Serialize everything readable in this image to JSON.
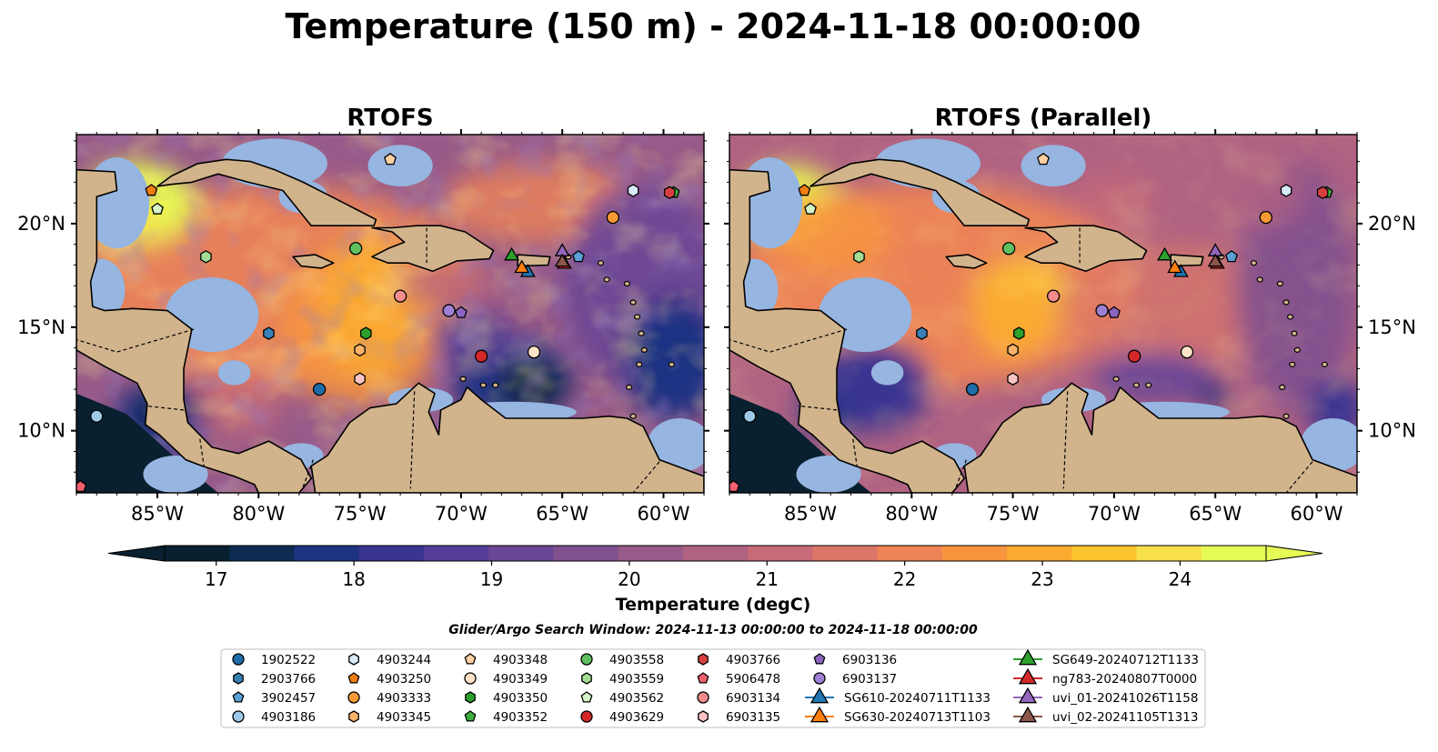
{
  "figure": {
    "title": "Temperature (150 m) - 2024-11-18 00:00:00",
    "panels": [
      {
        "title": "RTOFS",
        "variant": "rtofs"
      },
      {
        "title": "RTOFS (Parallel)",
        "variant": "parallel"
      }
    ],
    "lon_ticks": [
      "85°W",
      "80°W",
      "75°W",
      "70°W",
      "65°W",
      "60°W"
    ],
    "lat_ticks": [
      "20°N",
      "15°N",
      "10°N"
    ],
    "colorbar": {
      "label": "Temperature (degC)",
      "min": 16.625,
      "max": 24.625,
      "ticks": [
        "17",
        "18",
        "19",
        "20",
        "21",
        "22",
        "23",
        "24"
      ],
      "colors": [
        "#08202f",
        "#0e2c52",
        "#1e3282",
        "#3a3592",
        "#553e98",
        "#6a4796",
        "#80508f",
        "#985a88",
        "#b06282",
        "#c86b77",
        "#db7668",
        "#ee8455",
        "#f7953f",
        "#fbaa30",
        "#fcc42c",
        "#f8e04a",
        "#e6fa55"
      ]
    },
    "search_window": "Glider/Argo Search Window: 2024-11-13 00:00:00 to 2024-11-18 00:00:00",
    "map_colors": {
      "land": "#d2b48c",
      "shelf": "#96b5e0",
      "deep": "#08202f",
      "border": "#000000"
    },
    "legend": [
      {
        "label": "1902522",
        "marker": "circle",
        "color": "#1f6da8"
      },
      {
        "label": "2903766",
        "marker": "hexagon",
        "color": "#3980b6"
      },
      {
        "label": "3902457",
        "marker": "pentagon",
        "color": "#5b9fd4"
      },
      {
        "label": "4903186",
        "marker": "circle",
        "color": "#9ecae9"
      },
      {
        "label": "4903244",
        "marker": "hexagon",
        "color": "#d8eaf8"
      },
      {
        "label": "4903250",
        "marker": "pentagon",
        "color": "#f07d10"
      },
      {
        "label": "4903333",
        "marker": "circle",
        "color": "#f79a36"
      },
      {
        "label": "4903345",
        "marker": "hexagon",
        "color": "#fbb36b"
      },
      {
        "label": "4903348",
        "marker": "pentagon",
        "color": "#fdd0a2"
      },
      {
        "label": "4903349",
        "marker": "circle",
        "color": "#fde4c8"
      },
      {
        "label": "4903350",
        "marker": "hexagon",
        "color": "#2ca02c"
      },
      {
        "label": "4903352",
        "marker": "pentagon",
        "color": "#3dae3d"
      },
      {
        "label": "4903558",
        "marker": "circle",
        "color": "#60c060"
      },
      {
        "label": "4903559",
        "marker": "hexagon",
        "color": "#a3dc94"
      },
      {
        "label": "4903562",
        "marker": "pentagon",
        "color": "#d4f4c8"
      },
      {
        "label": "4903629",
        "marker": "circle",
        "color": "#d62728"
      },
      {
        "label": "4903766",
        "marker": "hexagon",
        "color": "#d84040"
      },
      {
        "label": "5906478",
        "marker": "pentagon",
        "color": "#f06070"
      },
      {
        "label": "6903134",
        "marker": "circle",
        "color": "#f48c8c"
      },
      {
        "label": "6903135",
        "marker": "hexagon",
        "color": "#fcc4c4"
      },
      {
        "label": "6903136",
        "marker": "pentagon",
        "color": "#8c64c0"
      },
      {
        "label": "6903137",
        "marker": "circle",
        "color": "#a080d4"
      },
      {
        "label": "SG610-20240711T1133",
        "marker": "triangle",
        "color": "#1f77b4"
      },
      {
        "label": "SG630-20240713T1103",
        "marker": "triangle",
        "color": "#ff7f0e"
      },
      {
        "label": "SG649-20240712T1133",
        "marker": "triangle",
        "color": "#2ca02c"
      },
      {
        "label": "ng783-20240807T0000",
        "marker": "triangle",
        "color": "#d62728"
      },
      {
        "label": "uvi_01-20241026T1158",
        "marker": "triangle",
        "color": "#9467bd"
      },
      {
        "label": "uvi_02-20241105T1313",
        "marker": "triangle",
        "color": "#8c564b"
      }
    ],
    "observations": [
      {
        "id": "1902522",
        "lon": -77.0,
        "lat": 12.0
      },
      {
        "id": "2903766",
        "lon": -79.5,
        "lat": 14.7
      },
      {
        "id": "3902457",
        "lon": -64.2,
        "lat": 18.4
      },
      {
        "id": "4903186",
        "lon": -88.0,
        "lat": 10.7
      },
      {
        "id": "4903244",
        "lon": -61.5,
        "lat": 21.6
      },
      {
        "id": "4903250",
        "lon": -85.3,
        "lat": 21.6
      },
      {
        "id": "4903333",
        "lon": -62.5,
        "lat": 20.3
      },
      {
        "id": "4903345",
        "lon": -75.0,
        "lat": 13.9
      },
      {
        "id": "4903348",
        "lon": -73.5,
        "lat": 23.1
      },
      {
        "id": "4903349",
        "lon": -66.4,
        "lat": 13.8
      },
      {
        "id": "4903350",
        "lon": -74.7,
        "lat": 14.7
      },
      {
        "id": "4903352",
        "lon": -59.5,
        "lat": 21.5
      },
      {
        "id": "4903558",
        "lon": -75.2,
        "lat": 18.8
      },
      {
        "id": "4903559",
        "lon": -82.6,
        "lat": 18.4
      },
      {
        "id": "4903562",
        "lon": -85.0,
        "lat": 20.7
      },
      {
        "id": "4903629",
        "lon": -69.0,
        "lat": 13.6
      },
      {
        "id": "4903766",
        "lon": -59.7,
        "lat": 21.5
      },
      {
        "id": "5906478",
        "lon": -88.8,
        "lat": 7.3
      },
      {
        "id": "6903134",
        "lon": -73.0,
        "lat": 16.5
      },
      {
        "id": "6903135",
        "lon": -75.0,
        "lat": 12.5
      },
      {
        "id": "6903136",
        "lon": -70.0,
        "lat": 15.7
      },
      {
        "id": "6903137",
        "lon": -70.6,
        "lat": 15.8
      },
      {
        "id": "SG610-20240711T1133",
        "lon": -66.7,
        "lat": 17.7
      },
      {
        "id": "SG630-20240713T1103",
        "lon": -67.0,
        "lat": 17.9
      },
      {
        "id": "SG649-20240712T1133",
        "lon": -67.5,
        "lat": 18.5
      },
      {
        "id": "ng783-20240807T0000",
        "lon": -64.9,
        "lat": 18.1
      },
      {
        "id": "uvi_01-20241026T1158",
        "lon": -65.0,
        "lat": 18.7
      },
      {
        "id": "uvi_02-20241105T1313",
        "lon": -65.0,
        "lat": 18.2
      }
    ]
  }
}
